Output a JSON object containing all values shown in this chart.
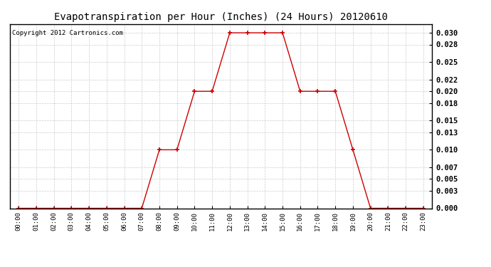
{
  "title": "Evapotranspiration per Hour (Inches) (24 Hours) 20120610",
  "copyright": "Copyright 2012 Cartronics.com",
  "hours": [
    0,
    1,
    2,
    3,
    4,
    5,
    6,
    7,
    8,
    9,
    10,
    11,
    12,
    13,
    14,
    15,
    16,
    17,
    18,
    19,
    20,
    21,
    22,
    23
  ],
  "values": [
    0.0,
    0.0,
    0.0,
    0.0,
    0.0,
    0.0,
    0.0,
    0.0,
    0.01,
    0.01,
    0.02,
    0.02,
    0.03,
    0.03,
    0.03,
    0.03,
    0.02,
    0.02,
    0.02,
    0.01,
    0.0,
    0.0,
    0.0,
    0.0
  ],
  "line_color": "#cc0000",
  "marker_color": "#cc0000",
  "bg_color": "#ffffff",
  "plot_bg_color": "#ffffff",
  "grid_color": "#c0c0c0",
  "ylim": [
    0.0,
    0.0315
  ],
  "yticks": [
    0.0,
    0.003,
    0.005,
    0.007,
    0.01,
    0.013,
    0.015,
    0.018,
    0.02,
    0.022,
    0.025,
    0.028,
    0.03
  ],
  "xlabel_fontsize": 6.5,
  "ylabel_fontsize": 7.5,
  "title_fontsize": 10,
  "copyright_fontsize": 6.5,
  "fig_width": 6.9,
  "fig_height": 3.75,
  "dpi": 100
}
